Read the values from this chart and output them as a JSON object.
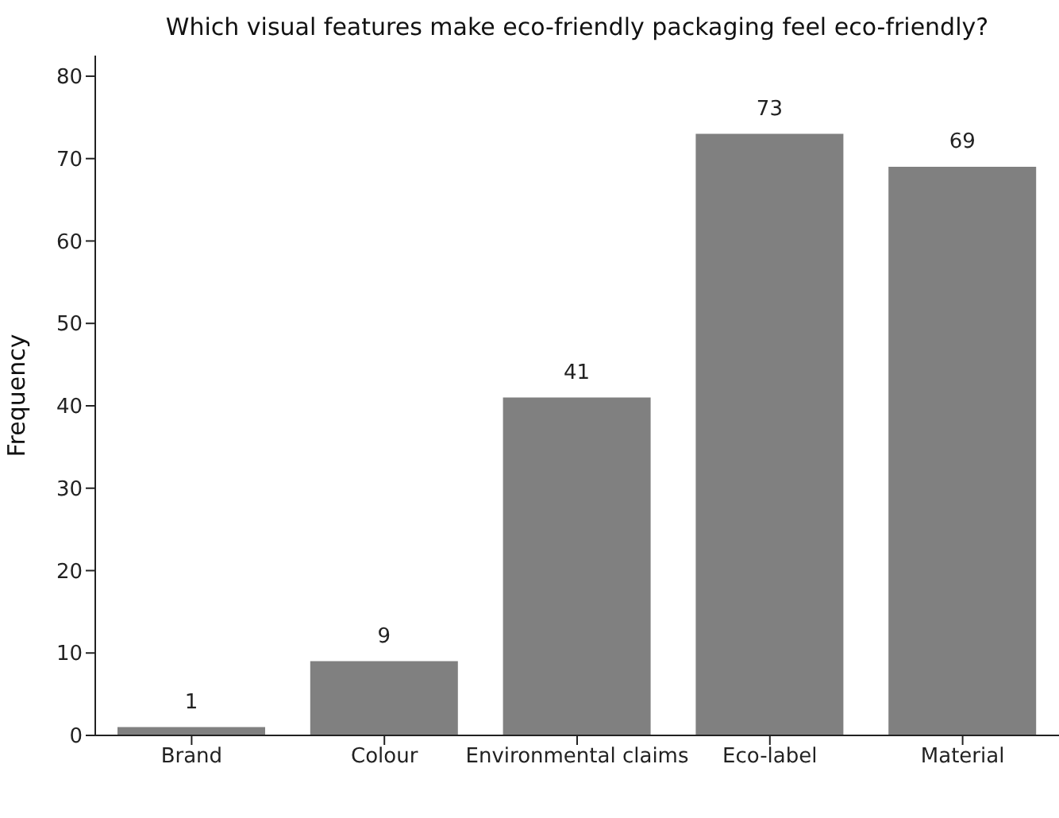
{
  "chart_data": {
    "type": "bar",
    "title": "Which visual features make eco-friendly packaging feel eco-friendly?",
    "ylabel": "Frequency",
    "categories": [
      "Brand",
      "Colour",
      "Environmental claims",
      "Eco-label",
      "Material"
    ],
    "values": [
      1,
      9,
      41,
      73,
      69
    ],
    "color": "#808080",
    "ylim": [
      0,
      82.5
    ],
    "yticks": [
      0,
      10,
      20,
      30,
      40,
      50,
      60,
      70,
      80
    ],
    "data_labels": true
  }
}
